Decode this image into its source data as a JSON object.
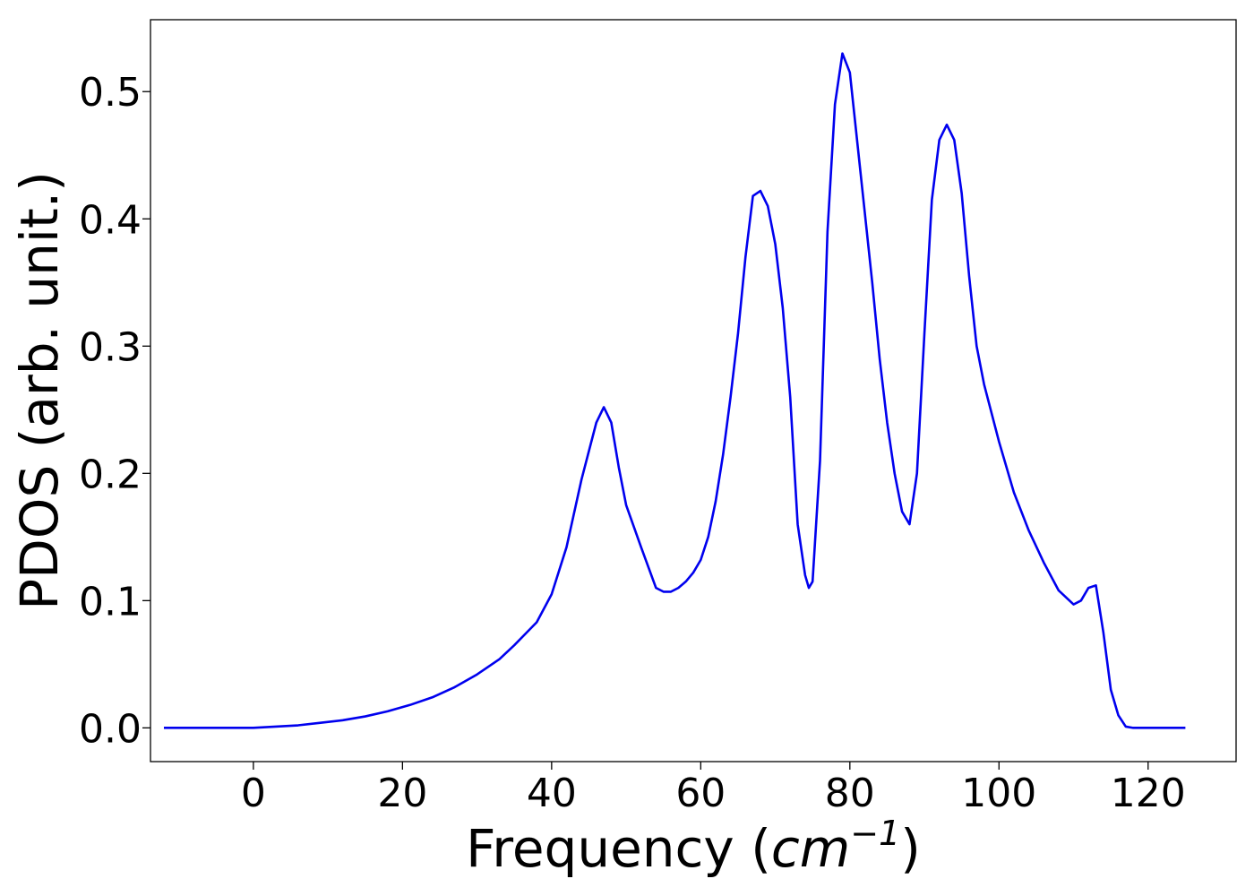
{
  "chart_data": {
    "type": "line",
    "xlabel": "Frequency",
    "xlabel_unit_prefix": "(",
    "xlabel_unit_var": "cm",
    "xlabel_unit_exp": "−1",
    "xlabel_unit_suffix": ")",
    "ylabel": "PDOS (arb. unit.)",
    "xlim": [
      -13.8,
      131.8
    ],
    "ylim": [
      -0.0265,
      0.5565
    ],
    "xticks": [
      0,
      20,
      40,
      60,
      80,
      100,
      120
    ],
    "xtick_labels": [
      "0",
      "20",
      "40",
      "60",
      "80",
      "100",
      "120"
    ],
    "yticks": [
      0.0,
      0.1,
      0.2,
      0.3,
      0.4,
      0.5
    ],
    "ytick_labels": [
      "0.0",
      "0.1",
      "0.2",
      "0.3",
      "0.4",
      "0.5"
    ],
    "grid": false,
    "series": [
      {
        "color": "#0000ee",
        "x": [
          -12,
          0,
          3,
          6,
          9,
          12,
          15,
          18,
          21,
          24,
          27,
          30,
          33,
          35,
          37,
          38,
          40,
          42,
          44,
          46,
          47,
          48,
          49,
          50,
          52,
          54,
          55,
          56,
          57,
          58,
          59,
          60,
          61,
          62,
          63,
          64,
          65,
          66,
          67,
          68,
          69,
          70,
          71,
          72,
          73,
          74,
          74.5,
          75,
          76,
          77,
          78,
          79,
          80,
          81,
          82,
          83,
          84,
          85,
          86,
          87,
          88,
          89,
          90,
          91,
          92,
          93,
          94,
          95,
          96,
          97,
          98,
          100,
          102,
          104,
          106,
          108,
          110,
          111,
          112,
          113,
          114,
          115,
          116,
          117,
          118,
          120,
          125
        ],
        "y": [
          0.0,
          0.0,
          0.001,
          0.002,
          0.004,
          0.006,
          0.009,
          0.013,
          0.018,
          0.024,
          0.032,
          0.042,
          0.054,
          0.065,
          0.077,
          0.083,
          0.105,
          0.142,
          0.195,
          0.24,
          0.252,
          0.24,
          0.205,
          0.175,
          0.142,
          0.11,
          0.107,
          0.107,
          0.11,
          0.115,
          0.122,
          0.132,
          0.15,
          0.178,
          0.215,
          0.26,
          0.31,
          0.37,
          0.418,
          0.422,
          0.41,
          0.38,
          0.33,
          0.26,
          0.16,
          0.12,
          0.11,
          0.115,
          0.21,
          0.39,
          0.49,
          0.53,
          0.515,
          0.46,
          0.405,
          0.35,
          0.29,
          0.24,
          0.2,
          0.17,
          0.16,
          0.2,
          0.31,
          0.415,
          0.462,
          0.474,
          0.462,
          0.42,
          0.355,
          0.3,
          0.27,
          0.225,
          0.185,
          0.155,
          0.13,
          0.108,
          0.097,
          0.1,
          0.11,
          0.112,
          0.075,
          0.03,
          0.01,
          0.001,
          0.0,
          0.0,
          0.0
        ]
      }
    ]
  }
}
